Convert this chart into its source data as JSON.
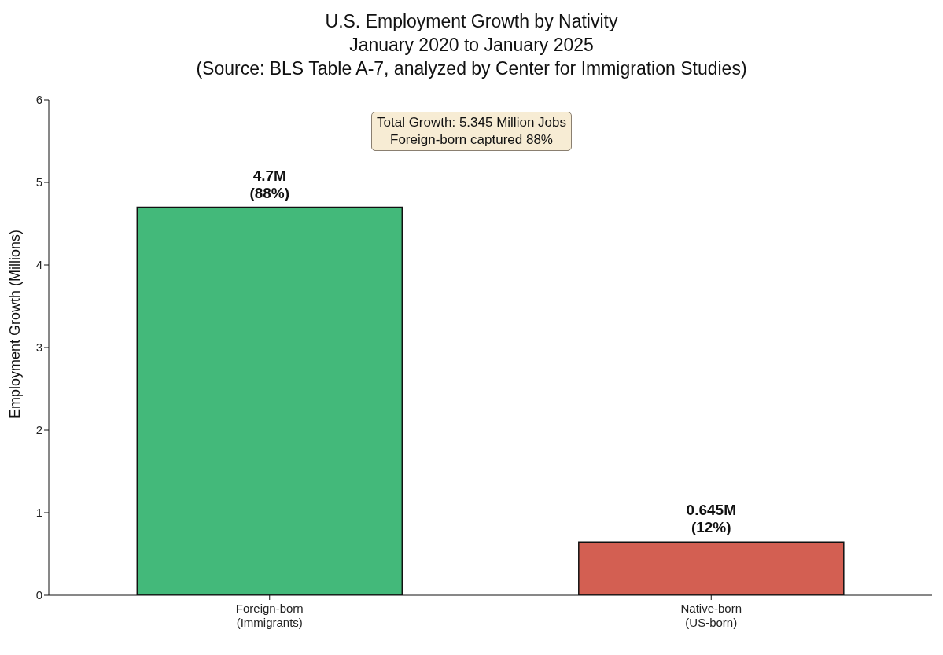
{
  "chart_data": {
    "type": "bar",
    "title": "U.S. Employment Growth by Nativity\nJanuary 2020 to January 2025\n(Source: BLS Table A-7, analyzed by Center for Immigration Studies)",
    "ylabel": "Employment Growth (Millions)",
    "categories": [
      "Foreign-born\n(Immigrants)",
      "Native-born\n(US-born)"
    ],
    "values": [
      4.7,
      0.645
    ],
    "colors": [
      "#43b97a",
      "#d35f52"
    ],
    "value_labels": [
      "4.7M",
      "0.645M"
    ],
    "annotations": [
      "Total Growth: 5.345 Million Jobs\nForeign-born captured 88%",
      {
        "text": "(88%)",
        "x": "Foreign-born\n(Immigrants)",
        "y": 4.7
      },
      {
        "text": "(12%)",
        "x": "Native-born\n(US-born)",
        "y": 0.645
      }
    ],
    "ylim": [
      0,
      6
    ],
    "yticks": [
      0,
      1,
      2,
      3,
      4,
      5,
      6
    ],
    "grid": false,
    "legend": false
  }
}
